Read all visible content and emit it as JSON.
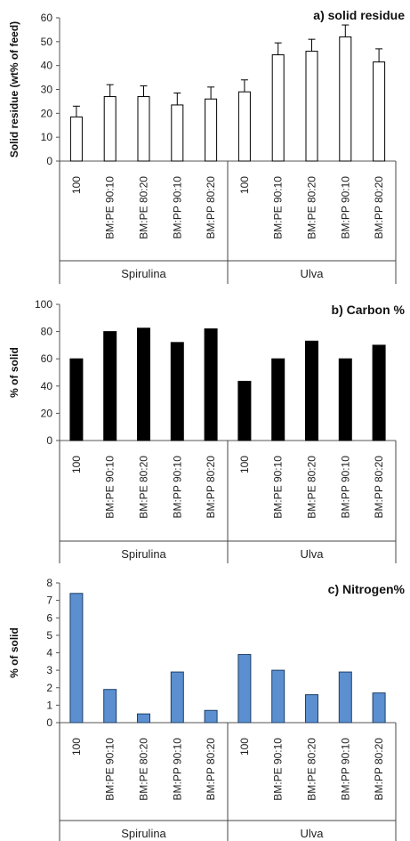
{
  "chart_data": [
    {
      "type": "bar",
      "title": "a) solid residue",
      "ylabel": "Solid residue (wt% of feed)",
      "ylim": [
        0,
        60
      ],
      "yticks": [
        0,
        10,
        20,
        30,
        40,
        50,
        60
      ],
      "categories": [
        "100",
        "BM:PE 90:10",
        "BM:PE 80:20",
        "BM:PP 90:10",
        "BM:PP 80:20",
        "100",
        "BM:PE 90:10",
        "BM:PE 80:20",
        "BM:PP 90:10",
        "BM:PP 80:20"
      ],
      "groups": [
        "Spirulina",
        "Ulva"
      ],
      "values": [
        18.5,
        27,
        27,
        23.5,
        26,
        29,
        44.5,
        46,
        52,
        41.5
      ],
      "errors": [
        4.5,
        5,
        4.5,
        5,
        5,
        5,
        5,
        5,
        5,
        5.5
      ],
      "bar_style": "hollow",
      "bar_color": "#ffffff",
      "edge_color": "#000000"
    },
    {
      "type": "bar",
      "title": "b) Carbon %",
      "ylabel": "% of solid",
      "ylim": [
        0,
        100
      ],
      "yticks": [
        0,
        20,
        40,
        60,
        80,
        100
      ],
      "categories": [
        "100",
        "BM:PE 90:10",
        "BM:PE 80:20",
        "BM:PP 90:10",
        "BM:PP 80:20",
        "100",
        "BM:PE 90:10",
        "BM:PE 80:20",
        "BM:PP 90:10",
        "BM:PP 80:20"
      ],
      "groups": [
        "Spirulina",
        "Ulva"
      ],
      "values": [
        60,
        80,
        82.5,
        72,
        82,
        43.5,
        60,
        73,
        60,
        70
      ],
      "bar_style": "filled",
      "bar_color": "#000000",
      "edge_color": "#000000"
    },
    {
      "type": "bar",
      "title": "c) Nitrogen%",
      "ylabel": "% of solid",
      "ylim": [
        0,
        8
      ],
      "yticks": [
        0,
        1,
        2,
        3,
        4,
        5,
        6,
        7,
        8
      ],
      "categories": [
        "100",
        "BM:PE 90:10",
        "BM:PE 80:20",
        "BM:PP 90:10",
        "BM:PP 80:20",
        "100",
        "BM:PE 90:10",
        "BM:PE 80:20",
        "BM:PP 90:10",
        "BM:PP 80:20"
      ],
      "groups": [
        "Spirulina",
        "Ulva"
      ],
      "values": [
        7.4,
        1.9,
        0.5,
        2.9,
        0.7,
        3.9,
        3.0,
        1.6,
        2.9,
        1.7
      ],
      "bar_style": "filled",
      "bar_color": "#5b8fd0",
      "edge_color": "#1f3f66"
    }
  ]
}
